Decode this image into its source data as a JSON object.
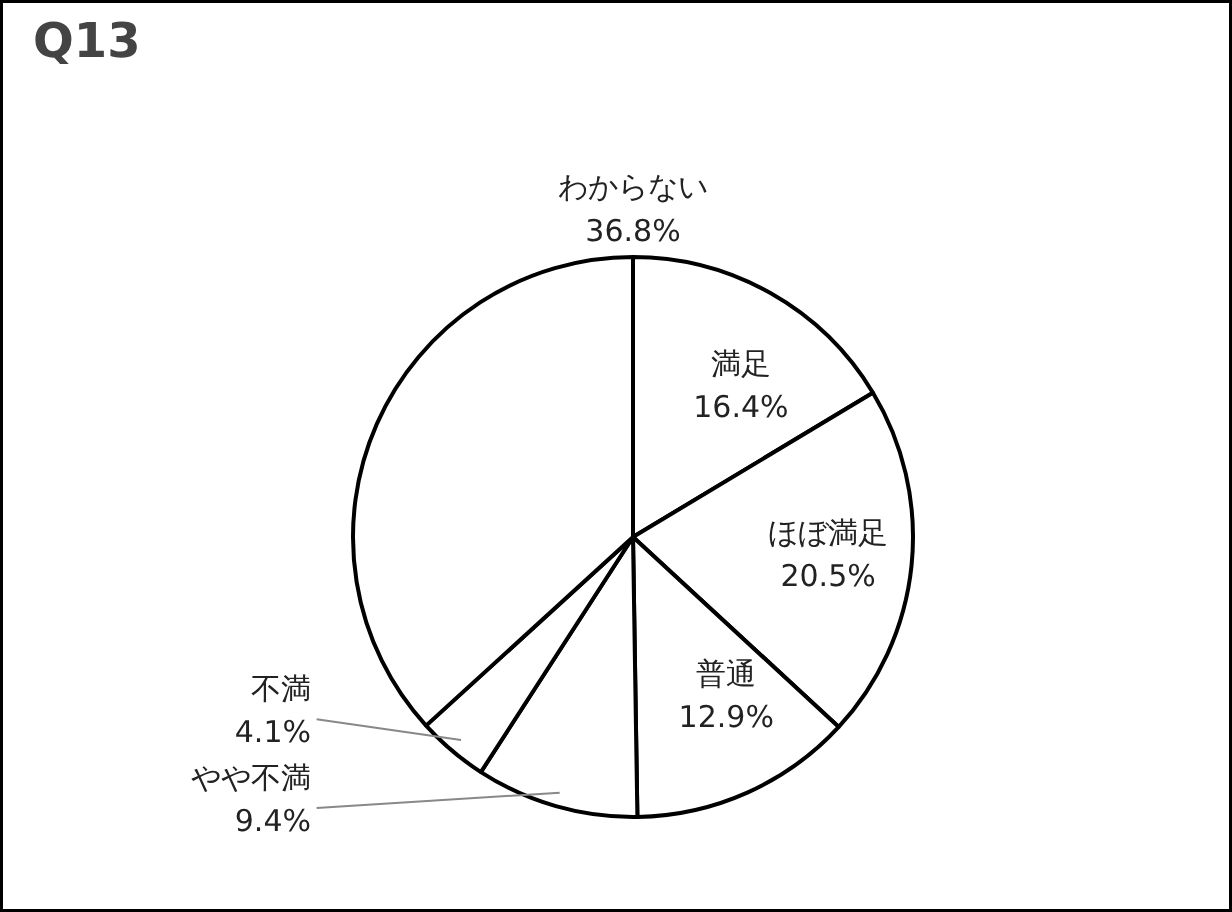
{
  "chart_data": {
    "type": "pie",
    "title": "Q13",
    "categories": [
      "満足",
      "ほぼ満足",
      "普通",
      "やや不満",
      "不満",
      "わからない"
    ],
    "values": [
      16.4,
      20.5,
      12.9,
      9.4,
      4.1,
      36.8
    ],
    "colors": [
      "#ffffff",
      "#ffffff",
      "#ffffff",
      "#ffffff",
      "#ffffff",
      "#ffffff"
    ],
    "value_labels": [
      "16.4%",
      "20.5%",
      "12.9%",
      "9.4%",
      "4.1%",
      "36.8%"
    ]
  }
}
